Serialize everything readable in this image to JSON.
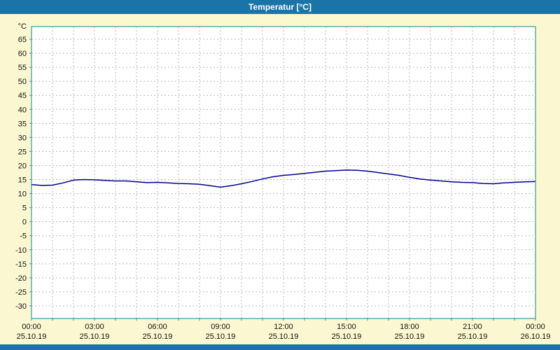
{
  "window": {
    "title": "Temperatur [°C]"
  },
  "colors": {
    "titlebar": "#1b74a8",
    "titlebar_text": "#ffffff",
    "background": "#fbf7d0",
    "plot_background": "#ffffff",
    "plot_border": "#2f9d9d",
    "grid": "#b8b8b8",
    "line": "#00008b",
    "axis_text": "#141414"
  },
  "chart_data": {
    "type": "line",
    "title": "Temperatur [°C]",
    "ylabel_unit": "°C",
    "ylim": [
      -30,
      65
    ],
    "y_tick_step": 5,
    "x_range_hours": [
      0,
      24
    ],
    "x_minor_grid_step_hours": 1,
    "grid": true,
    "legend": "none",
    "x_ticks": [
      {
        "hour": 0,
        "time": "00:00",
        "date": "25.10.19"
      },
      {
        "hour": 3,
        "time": "03:00",
        "date": "25.10.19"
      },
      {
        "hour": 6,
        "time": "06:00",
        "date": "25.10.19"
      },
      {
        "hour": 9,
        "time": "09:00",
        "date": "25.10.19"
      },
      {
        "hour": 12,
        "time": "12:00",
        "date": "25.10.19"
      },
      {
        "hour": 15,
        "time": "15:00",
        "date": "25.10.19"
      },
      {
        "hour": 18,
        "time": "18:00",
        "date": "25.10.19"
      },
      {
        "hour": 21,
        "time": "21:00",
        "date": "25.10.19"
      },
      {
        "hour": 24,
        "time": "00:00",
        "date": "26.10.19"
      }
    ],
    "series": [
      {
        "name": "Temperatur",
        "x": [
          0,
          0.5,
          1,
          1.5,
          2,
          2.5,
          3,
          3.5,
          4,
          4.5,
          5,
          5.5,
          6,
          6.5,
          7,
          7.5,
          8,
          8.5,
          9,
          9.5,
          10,
          10.5,
          11,
          11.5,
          12,
          12.5,
          13,
          13.5,
          14,
          14.5,
          15,
          15.5,
          16,
          16.5,
          17,
          17.5,
          18,
          18.5,
          19,
          19.5,
          20,
          20.5,
          21,
          21.5,
          22,
          22.5,
          23,
          23.5,
          24
        ],
        "values": [
          13.2,
          12.9,
          13.0,
          13.8,
          14.8,
          15.0,
          14.9,
          14.7,
          14.5,
          14.5,
          14.2,
          13.9,
          14.0,
          13.8,
          13.6,
          13.5,
          13.3,
          12.8,
          12.3,
          12.8,
          13.5,
          14.3,
          15.2,
          16.0,
          16.5,
          16.8,
          17.2,
          17.6,
          18.0,
          18.2,
          18.4,
          18.3,
          18.0,
          17.5,
          17.0,
          16.5,
          15.8,
          15.2,
          14.8,
          14.5,
          14.2,
          14.0,
          13.9,
          13.6,
          13.5,
          13.8,
          14.0,
          14.2,
          14.3
        ]
      }
    ]
  }
}
